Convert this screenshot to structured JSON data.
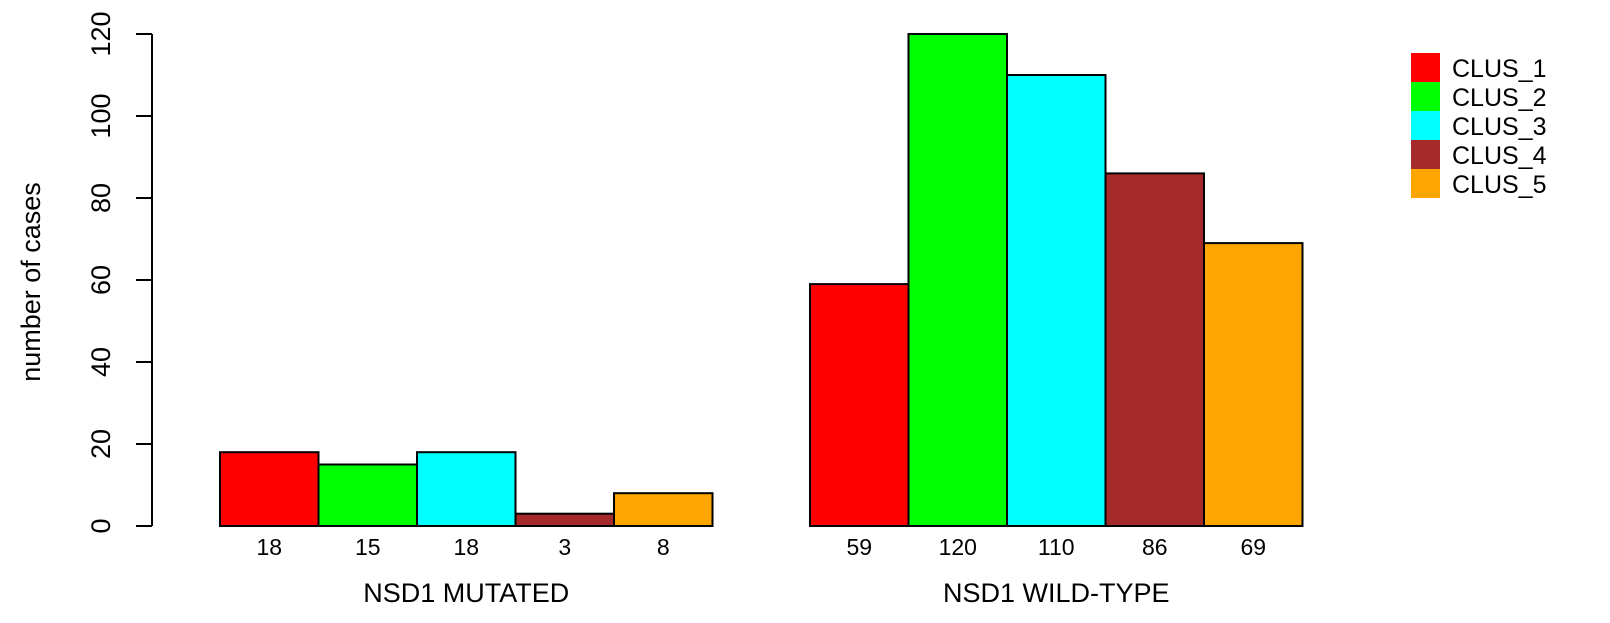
{
  "chart_data": {
    "type": "bar",
    "ylabel": "number of cases",
    "ylim": [
      0,
      120
    ],
    "yticks": [
      0,
      20,
      40,
      60,
      80,
      100,
      120
    ],
    "groups": [
      {
        "label": "NSD1 MUTATED",
        "values": [
          18,
          15,
          18,
          3,
          8
        ]
      },
      {
        "label": "NSD1 WILD-TYPE",
        "values": [
          59,
          120,
          110,
          86,
          69
        ]
      }
    ],
    "series": [
      {
        "name": "CLUS_1",
        "color": "#ff0000"
      },
      {
        "name": "CLUS_2",
        "color": "#00ff00"
      },
      {
        "name": "CLUS_3",
        "color": "#00ffff"
      },
      {
        "name": "CLUS_4",
        "color": "#a52a2a"
      },
      {
        "name": "CLUS_5",
        "color": "#ffa500"
      }
    ],
    "legend_position": "top-right",
    "grid": false
  }
}
